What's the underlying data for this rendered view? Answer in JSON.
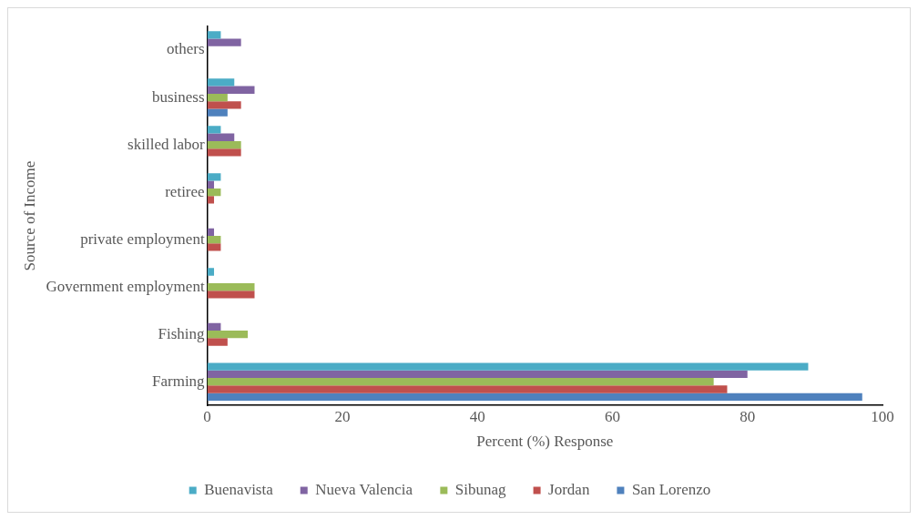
{
  "chart_data": {
    "type": "bar",
    "orientation": "horizontal",
    "xlabel": "Percent (%) Response",
    "ylabel": "Source of Income",
    "categories": [
      "others",
      "business",
      "skilled labor",
      "retiree",
      "private employment",
      "Government employment",
      "Fishing",
      "Farming"
    ],
    "series": [
      {
        "name": "Buenavista",
        "color": "#4bacc6",
        "values": [
          2,
          4,
          2,
          2,
          0,
          1,
          0,
          89
        ]
      },
      {
        "name": "Nueva Valencia",
        "color": "#8064a2",
        "values": [
          5,
          7,
          4,
          1,
          1,
          0,
          2,
          80
        ]
      },
      {
        "name": "Sibunag",
        "color": "#9bbb59",
        "values": [
          0,
          3,
          5,
          2,
          2,
          7,
          6,
          75
        ]
      },
      {
        "name": "Jordan",
        "color": "#c0504d",
        "values": [
          0,
          5,
          5,
          1,
          2,
          7,
          3,
          77
        ]
      },
      {
        "name": "San Lorenzo",
        "color": "#4f81bd",
        "values": [
          0,
          3,
          0,
          0,
          0,
          0,
          0,
          97
        ]
      }
    ],
    "xlim": [
      0,
      100
    ],
    "xticks": [
      0,
      20,
      40,
      60,
      80,
      100
    ],
    "grid": false,
    "legend": "bottom"
  }
}
